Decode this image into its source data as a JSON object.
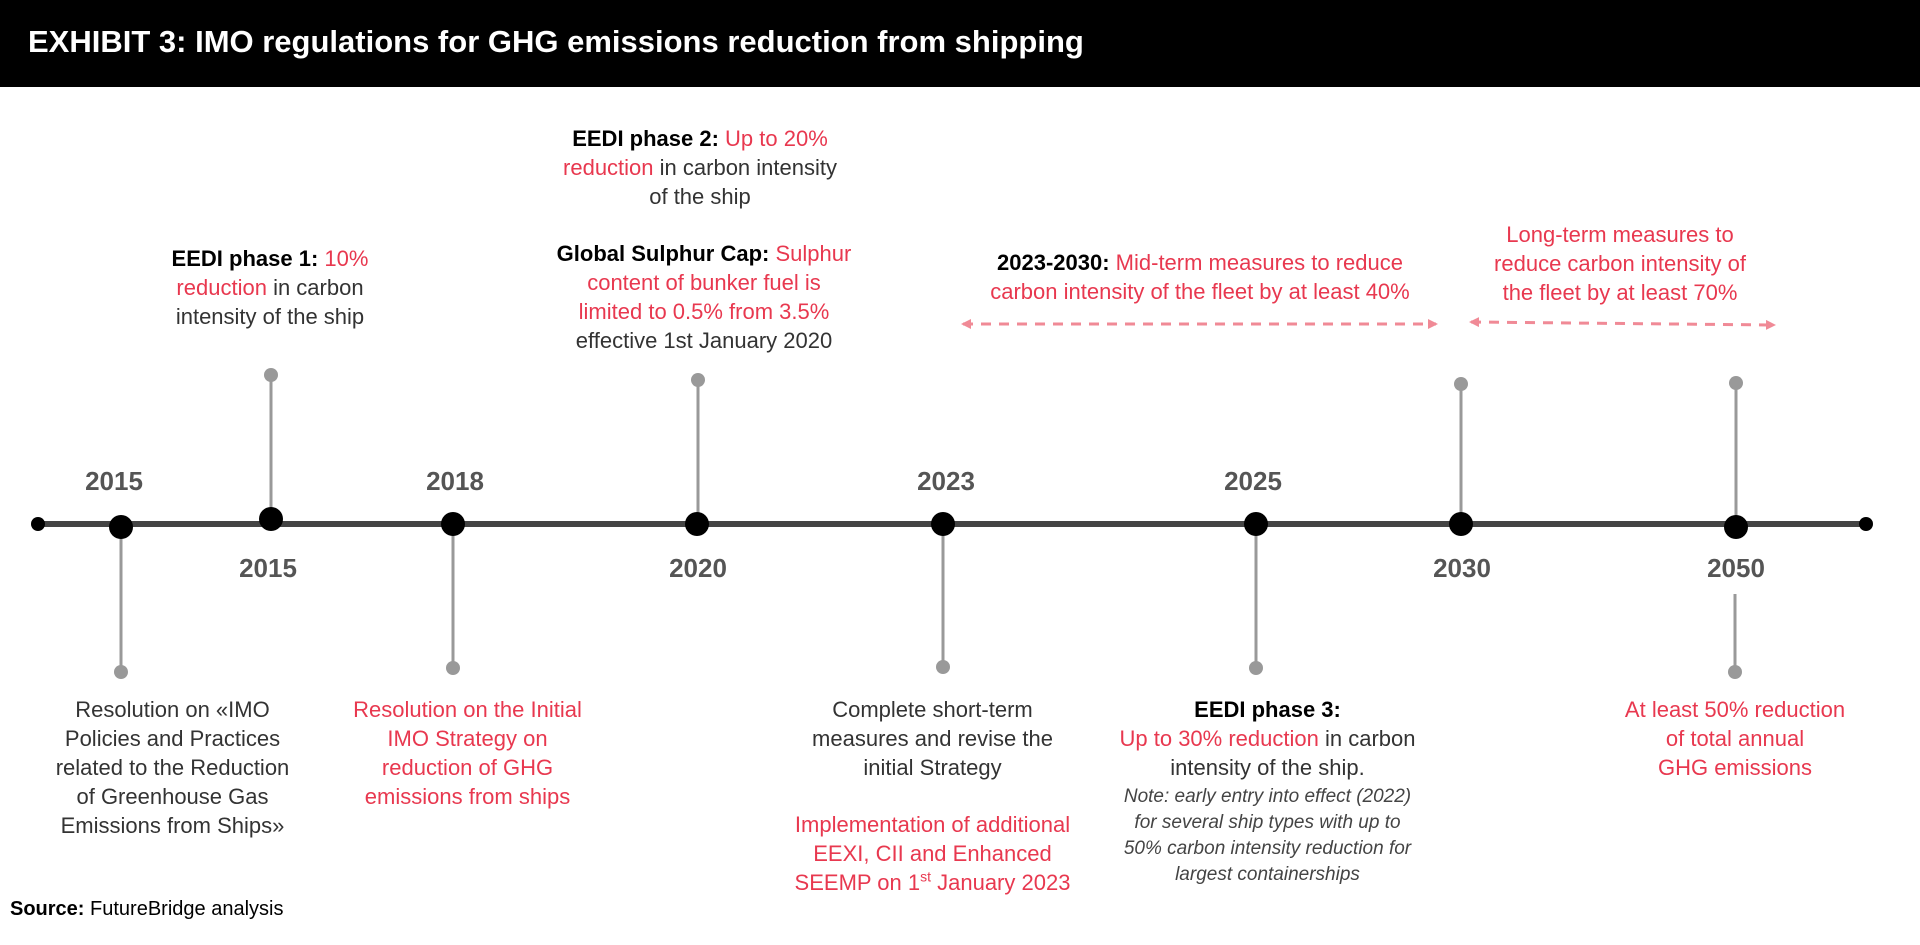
{
  "header": {
    "title": "EXHIBIT 3: IMO regulations for GHG emissions reduction from shipping"
  },
  "colors": {
    "accent": "#e8384f",
    "arrow": "#f08a96",
    "axis": "#444444",
    "stem": "#999999",
    "marker": "#000000"
  },
  "years_above": [
    "2015",
    "2018",
    "2023",
    "2025"
  ],
  "years_below": [
    "2015",
    "2020",
    "2030",
    "2050"
  ],
  "events_above": {
    "eedi1": {
      "bold": "EEDI phase 1:",
      "red1": "10%",
      "red2": "reduction",
      "plain1": "in carbon",
      "plain2": "intensity of the ship"
    },
    "eedi2": {
      "bold": "EEDI phase 2:",
      "red1": "Up to 20%",
      "red2": "reduction",
      "plain1": "in carbon intensity",
      "plain2": "of the ship"
    },
    "sulphur": {
      "bold": "Global Sulphur Cap:",
      "red1": "Sulphur",
      "red2": "content of bunker fuel is",
      "red3": "limited to 0.5% from 3.5%",
      "plain": "effective 1st January 2020"
    },
    "midterm": {
      "bold": "2023-2030:",
      "red1": "Mid-term measures to reduce",
      "red2": "carbon intensity of the fleet by at least 40%"
    },
    "longterm": {
      "red1": "Long-term measures to",
      "red2": "reduce carbon intensity of",
      "red3": "the fleet by at least 70%"
    }
  },
  "events_below": {
    "resolution2015": {
      "lines": [
        "Resolution on «IMO",
        "Policies and Practices",
        "related to the Reduction",
        "of Greenhouse Gas",
        "Emissions from Ships»"
      ]
    },
    "initial_strategy": {
      "lines": [
        "Resolution on the Initial",
        "IMO Strategy on",
        "reduction of GHG",
        "emissions from ships"
      ]
    },
    "shortterm": {
      "lines": [
        "Complete short-term",
        "measures and revise the",
        "initial Strategy"
      ],
      "impl1": "Implementation of additional",
      "impl2": "EEXI, CII and Enhanced",
      "impl3a": "SEEMP on 1",
      "impl3sup": "st",
      "impl3b": " January 2023"
    },
    "eedi3": {
      "bold": "EEDI phase 3:",
      "red": "Up to 30% reduction",
      "plain1": "in carbon",
      "plain2": "intensity of the ship.",
      "note": [
        "Note: early entry into effect (2022)",
        "for several ship types with up to",
        "50% carbon intensity reduction for",
        "largest containerships"
      ]
    },
    "target2050": {
      "lines": [
        "At least 50% reduction",
        "of total annual",
        "GHG emissions"
      ]
    }
  },
  "source": {
    "label": "Source:",
    "text": "FutureBridge analysis"
  }
}
